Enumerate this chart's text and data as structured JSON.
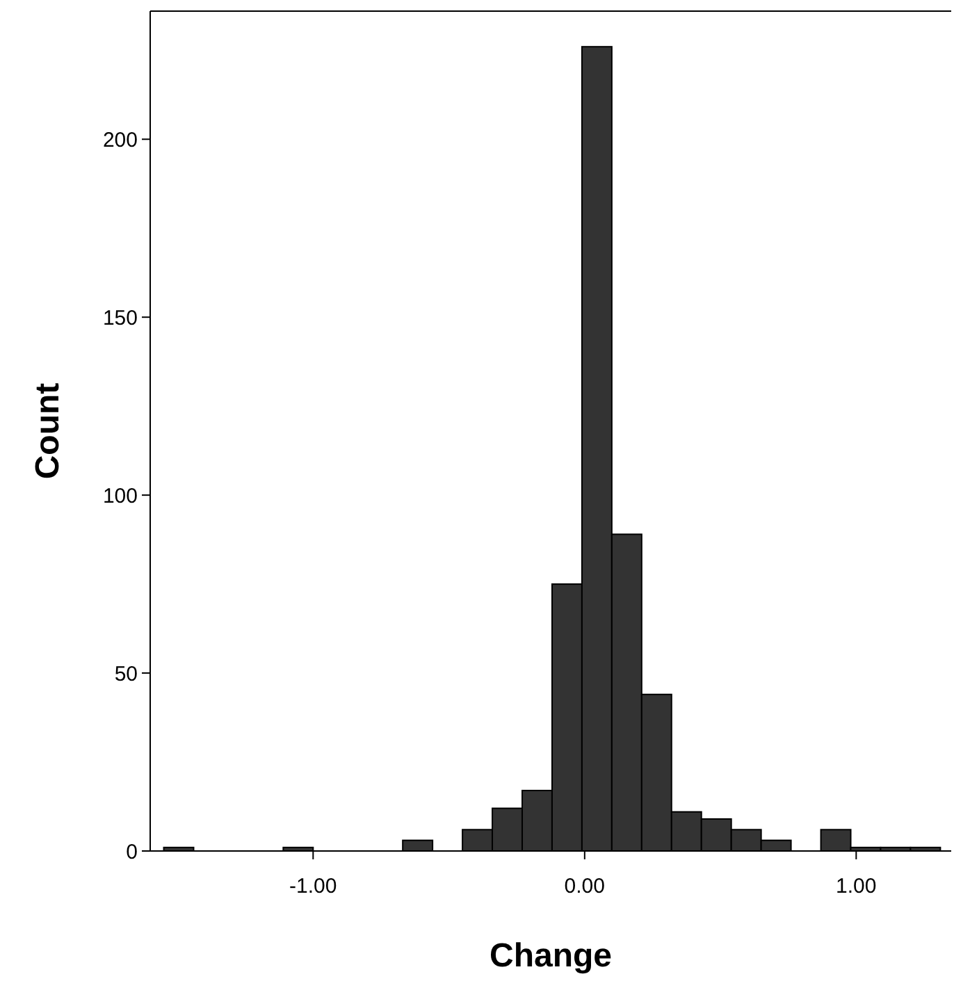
{
  "chart_data": {
    "type": "histogram",
    "xlabel": "Change",
    "ylabel": "Count",
    "bins": [
      -1.55,
      -1.44,
      -1.33,
      -1.22,
      -1.11,
      -1.0,
      -0.89,
      -0.78,
      -0.67,
      -0.56,
      -0.45,
      -0.34,
      -0.23,
      -0.12,
      -0.01,
      0.1,
      0.21,
      0.32,
      0.43,
      0.54,
      0.65,
      0.76,
      0.87,
      0.98,
      1.09,
      1.2,
      1.31
    ],
    "values": [
      1,
      0,
      0,
      0,
      1,
      0,
      0,
      0,
      3,
      0,
      6,
      12,
      17,
      75,
      226,
      89,
      44,
      11,
      9,
      6,
      3,
      0,
      6,
      1,
      1,
      1
    ],
    "color": "#333333",
    "xlim": [
      -1.6,
      1.35
    ],
    "xticks": [
      {
        "value": -1,
        "label": "-1.00"
      },
      {
        "value": 0,
        "label": "0.00"
      },
      {
        "value": 1,
        "label": "1.00"
      }
    ],
    "ylim": [
      0,
      236
    ],
    "yticks": [
      0,
      50,
      100,
      150,
      200
    ]
  }
}
